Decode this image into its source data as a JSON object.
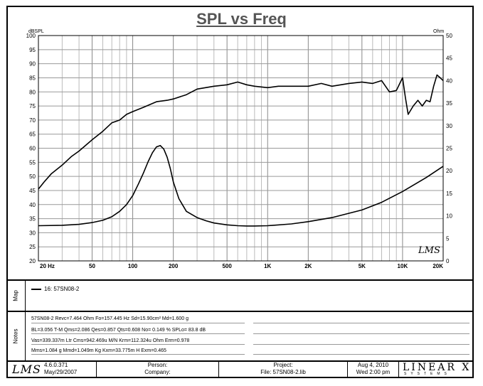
{
  "chart_data": {
    "type": "line",
    "title": "SPL vs Freq",
    "ylabel_left": "dBSPL",
    "ylabel_right": "Ohm",
    "xscale": "log",
    "xlim": [
      20,
      20000
    ],
    "ylim_left": [
      20,
      100
    ],
    "ylim_right": [
      0,
      50
    ],
    "grid": true,
    "x_tick_labels": [
      "20 Hz",
      "50",
      "100",
      "200",
      "500",
      "1K",
      "2K",
      "5K",
      "10K",
      "20K"
    ],
    "x_tick_values": [
      20,
      50,
      100,
      200,
      500,
      1000,
      2000,
      5000,
      10000,
      20000
    ],
    "y_left_ticks": [
      20,
      25,
      30,
      35,
      40,
      45,
      50,
      55,
      60,
      65,
      70,
      75,
      80,
      85,
      90,
      95,
      100
    ],
    "y_right_ticks": [
      0,
      5,
      10,
      15,
      20,
      25,
      30,
      35,
      40,
      45,
      50
    ],
    "series": [
      {
        "name": "SPL",
        "axis": "left",
        "x": [
          20,
          22,
          25,
          30,
          35,
          40,
          50,
          60,
          70,
          80,
          90,
          100,
          120,
          150,
          180,
          200,
          250,
          300,
          400,
          500,
          600,
          700,
          800,
          1000,
          1200,
          1500,
          2000,
          2500,
          3000,
          4000,
          5000,
          6000,
          7000,
          8000,
          9000,
          10000,
          10500,
          11000,
          12000,
          13000,
          14000,
          15000,
          16000,
          17000,
          18000,
          19000,
          20000
        ],
        "y": [
          45.5,
          48,
          51,
          54,
          57,
          59,
          63,
          66,
          69,
          70,
          72,
          73,
          74.5,
          76.5,
          77,
          77.5,
          79,
          81,
          82,
          82.5,
          83.5,
          82.5,
          82,
          81.5,
          82,
          82,
          82,
          83,
          82,
          83,
          83.5,
          83,
          84,
          80,
          80.5,
          85,
          78,
          72,
          75,
          77,
          75,
          77,
          76.5,
          82,
          86,
          85,
          84
        ]
      },
      {
        "name": "Impedance",
        "axis": "right",
        "x": [
          20,
          30,
          40,
          50,
          60,
          70,
          80,
          90,
          100,
          110,
          120,
          130,
          140,
          150,
          160,
          170,
          180,
          190,
          200,
          220,
          250,
          300,
          350,
          400,
          500,
          600,
          700,
          800,
          1000,
          1500,
          2000,
          3000,
          5000,
          7000,
          10000,
          15000,
          20000
        ],
        "y": [
          7.8,
          7.9,
          8.1,
          8.5,
          9,
          9.8,
          11,
          12.5,
          14.5,
          17,
          19.5,
          22,
          24,
          25.3,
          25.6,
          24.8,
          23,
          20.5,
          17.5,
          13.8,
          11,
          9.6,
          8.9,
          8.4,
          8,
          7.8,
          7.75,
          7.75,
          7.8,
          8.2,
          8.7,
          9.6,
          11.3,
          13,
          15.4,
          18.5,
          21
        ]
      }
    ]
  },
  "watermark": "LMS",
  "map": {
    "label": "Map",
    "entry": "16: 57SN08-2"
  },
  "notes": {
    "label": "Notes",
    "lines": [
      "57SN08-2 Revc=7.464 Ohm  Fo=157.445 Hz  Sd=15.90cm² Md=1.600 g",
      "BL=3.056 T-M  Qms=2.086  Qes=0.857  Qts=0.608  No= 0.149 %  SPLo= 83.8 dB",
      "Vas=339.337m Ltr  Cms=942.469u M/N  Krm=112.324u Ohm  Erm=0.978",
      "Mms=1.084 g  Mmd=1.049m Kg  Kxm=33.775m H  Exm=0.465"
    ]
  },
  "footer": {
    "logo": "LMS",
    "version": "4.6.0.371",
    "version_date": "May/29/2007",
    "person_label": "Person:",
    "company_label": "Company:",
    "project_label": "Project:",
    "file_label": "File: 57SN08-2.lib",
    "date": "Aug  4, 2010",
    "time": "Wed  2:00 pm",
    "brand": "LINEAR X",
    "brand_sub": "SYSTEMS"
  }
}
